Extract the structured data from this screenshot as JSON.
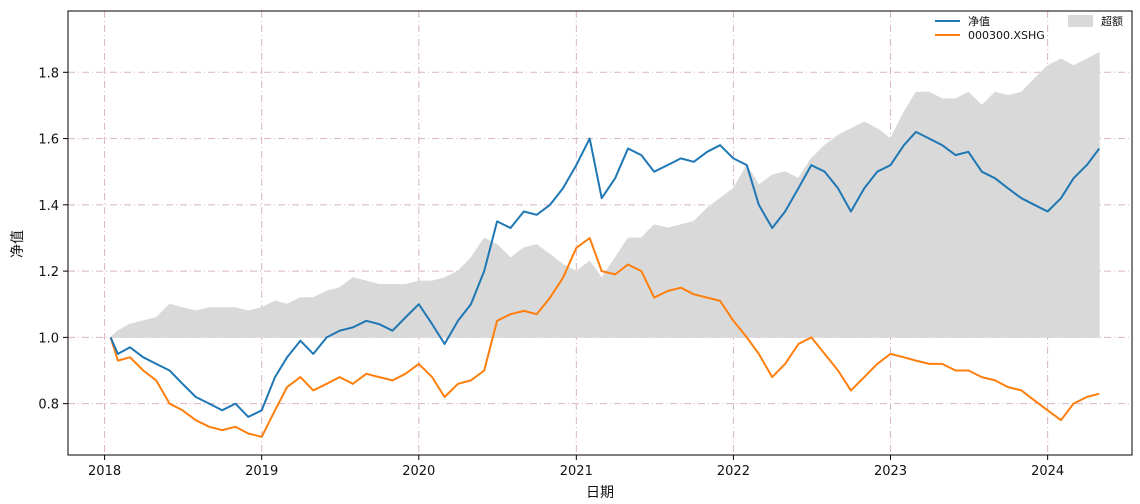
{
  "chart_data": {
    "type": "line",
    "title": "",
    "xlabel": "日期",
    "ylabel": "净值",
    "x_ticks": [
      "2018",
      "2019",
      "2020",
      "2021",
      "2022",
      "2023",
      "2024"
    ],
    "y_ticks": [
      "0.8",
      "1.0",
      "1.2",
      "1.4",
      "1.6",
      "1.8"
    ],
    "xlim": [
      "2017-10-08",
      "2024-07-15"
    ],
    "ylim": [
      0.645,
      1.985
    ],
    "grid": true,
    "legend_position": "top-right",
    "x": [
      "2018-01-15",
      "2018-02-01",
      "2018-03-01",
      "2018-04-01",
      "2018-05-01",
      "2018-06-01",
      "2018-07-01",
      "2018-08-01",
      "2018-09-01",
      "2018-10-01",
      "2018-11-01",
      "2018-12-01",
      "2019-01-01",
      "2019-02-01",
      "2019-03-01",
      "2019-04-01",
      "2019-05-01",
      "2019-06-01",
      "2019-07-01",
      "2019-08-01",
      "2019-09-01",
      "2019-10-01",
      "2019-11-01",
      "2019-12-01",
      "2020-01-01",
      "2020-02-01",
      "2020-03-01",
      "2020-04-01",
      "2020-05-01",
      "2020-06-01",
      "2020-07-01",
      "2020-08-01",
      "2020-09-01",
      "2020-10-01",
      "2020-11-01",
      "2020-12-01",
      "2021-01-01",
      "2021-02-01",
      "2021-03-01",
      "2021-04-01",
      "2021-05-01",
      "2021-06-01",
      "2021-07-01",
      "2021-08-01",
      "2021-09-01",
      "2021-10-01",
      "2021-11-01",
      "2021-12-01",
      "2022-01-01",
      "2022-02-01",
      "2022-03-01",
      "2022-04-01",
      "2022-05-01",
      "2022-06-01",
      "2022-07-01",
      "2022-08-01",
      "2022-09-01",
      "2022-10-01",
      "2022-11-01",
      "2022-12-01",
      "2023-01-01",
      "2023-02-01",
      "2023-03-01",
      "2023-04-01",
      "2023-05-01",
      "2023-06-01",
      "2023-07-01",
      "2023-08-01",
      "2023-09-01",
      "2023-10-01",
      "2023-11-01",
      "2023-12-01",
      "2024-01-01",
      "2024-02-01",
      "2024-03-01",
      "2024-04-01",
      "2024-04-30"
    ],
    "series": [
      {
        "name": "净值",
        "kind": "line",
        "color": "#1f77b4",
        "values": [
          1.0,
          0.95,
          0.97,
          0.94,
          0.92,
          0.9,
          0.86,
          0.82,
          0.8,
          0.78,
          0.8,
          0.76,
          0.78,
          0.88,
          0.94,
          0.99,
          0.95,
          1.0,
          1.02,
          1.03,
          1.05,
          1.04,
          1.02,
          1.06,
          1.1,
          1.04,
          0.98,
          1.05,
          1.1,
          1.2,
          1.35,
          1.33,
          1.38,
          1.37,
          1.4,
          1.45,
          1.52,
          1.6,
          1.42,
          1.48,
          1.57,
          1.55,
          1.5,
          1.52,
          1.54,
          1.53,
          1.56,
          1.58,
          1.54,
          1.52,
          1.4,
          1.33,
          1.38,
          1.45,
          1.52,
          1.5,
          1.45,
          1.38,
          1.45,
          1.5,
          1.52,
          1.58,
          1.62,
          1.6,
          1.58,
          1.55,
          1.56,
          1.5,
          1.48,
          1.45,
          1.42,
          1.4,
          1.38,
          1.42,
          1.48,
          1.52,
          1.57
        ]
      },
      {
        "name": "000300.XSHG",
        "kind": "line",
        "color": "#ff7f0e",
        "values": [
          1.0,
          0.93,
          0.94,
          0.9,
          0.87,
          0.8,
          0.78,
          0.75,
          0.73,
          0.72,
          0.73,
          0.71,
          0.7,
          0.78,
          0.85,
          0.88,
          0.84,
          0.86,
          0.88,
          0.86,
          0.89,
          0.88,
          0.87,
          0.89,
          0.92,
          0.88,
          0.82,
          0.86,
          0.87,
          0.9,
          1.05,
          1.07,
          1.08,
          1.07,
          1.12,
          1.18,
          1.27,
          1.3,
          1.2,
          1.19,
          1.22,
          1.2,
          1.12,
          1.14,
          1.15,
          1.13,
          1.12,
          1.11,
          1.05,
          1.0,
          0.95,
          0.88,
          0.92,
          0.98,
          1.0,
          0.95,
          0.9,
          0.84,
          0.88,
          0.92,
          0.95,
          0.94,
          0.93,
          0.92,
          0.92,
          0.9,
          0.9,
          0.88,
          0.87,
          0.85,
          0.84,
          0.81,
          0.78,
          0.75,
          0.8,
          0.82,
          0.83
        ]
      },
      {
        "name": "超额",
        "kind": "area",
        "color": "#d9d9d9",
        "values": [
          1.0,
          1.02,
          1.04,
          1.05,
          1.06,
          1.1,
          1.09,
          1.08,
          1.09,
          1.09,
          1.09,
          1.08,
          1.09,
          1.11,
          1.1,
          1.12,
          1.12,
          1.14,
          1.15,
          1.18,
          1.17,
          1.16,
          1.16,
          1.16,
          1.17,
          1.17,
          1.18,
          1.2,
          1.24,
          1.3,
          1.28,
          1.24,
          1.27,
          1.28,
          1.25,
          1.22,
          1.2,
          1.23,
          1.18,
          1.24,
          1.3,
          1.3,
          1.34,
          1.33,
          1.34,
          1.35,
          1.39,
          1.42,
          1.45,
          1.52,
          1.46,
          1.49,
          1.5,
          1.48,
          1.54,
          1.58,
          1.61,
          1.63,
          1.65,
          1.63,
          1.6,
          1.68,
          1.74,
          1.74,
          1.72,
          1.72,
          1.74,
          1.7,
          1.74,
          1.73,
          1.74,
          1.78,
          1.82,
          1.84,
          1.82,
          1.84,
          1.86
        ]
      }
    ]
  }
}
